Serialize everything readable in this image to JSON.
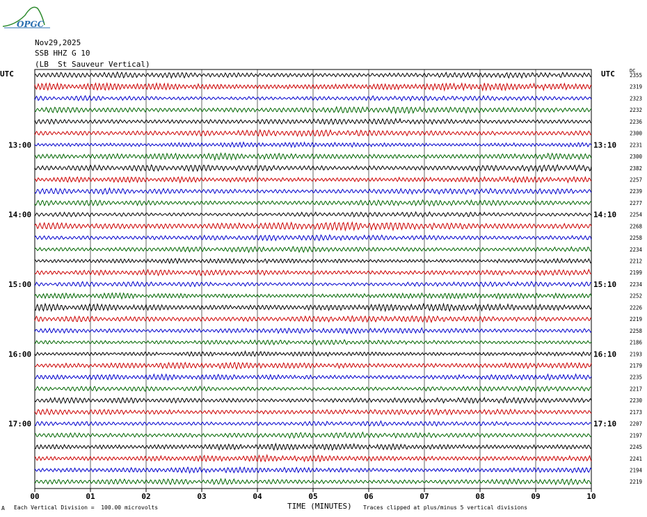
{
  "logo": {
    "text": "OPGC"
  },
  "header": {
    "date": "Nov29,2025",
    "station": "SSB HHZ G 10",
    "location": "(LB  St Sauveur Vertical)"
  },
  "labels": {
    "utc_left": "UTC",
    "utc_right": "UTC",
    "dc_header": "DC"
  },
  "footer": {
    "scale_note": "Each Vertical Division =  100.00 microvolts",
    "clip_note": "Traces clipped at plus/minus 5 vertical divisions",
    "corner_mark": "A"
  },
  "colors": {
    "trace_cycle": [
      "#000000",
      "#cc0000",
      "#0000cc",
      "#006600"
    ],
    "grid": "#000000",
    "background": "#ffffff"
  },
  "chart_data": {
    "type": "line",
    "title": "",
    "xlabel": "TIME (MINUTES)",
    "ylabel": "",
    "xlim": [
      0,
      10
    ],
    "x_ticks": [
      "00",
      "01",
      "02",
      "03",
      "04",
      "05",
      "06",
      "07",
      "08",
      "09",
      "10"
    ],
    "grid": true,
    "traces_per_hour": 6,
    "left_hour_labels": [
      {
        "label": "13:00",
        "trace": 6
      },
      {
        "label": "14:00",
        "trace": 12
      },
      {
        "label": "15:00",
        "trace": 18
      },
      {
        "label": "16:00",
        "trace": 24
      },
      {
        "label": "17:00",
        "trace": 30
      }
    ],
    "right_time_labels": [
      {
        "label": "13:10",
        "trace": 6
      },
      {
        "label": "14:10",
        "trace": 12
      },
      {
        "label": "15:10",
        "trace": 18
      },
      {
        "label": "16:10",
        "trace": 24
      },
      {
        "label": "17:10",
        "trace": 30
      }
    ],
    "trace_dc_values": [
      "2355",
      "2319",
      "2323",
      "2232",
      "2236",
      "2300",
      "2231",
      "2300",
      "2382",
      "2257",
      "2239",
      "2277",
      "2254",
      "2268",
      "2258",
      "2234",
      "2212",
      "2199",
      "2234",
      "2252",
      "2226",
      "2219",
      "2258",
      "2186",
      "2193",
      "2179",
      "2235",
      "2217",
      "2230",
      "2173",
      "2207",
      "2197",
      "2245",
      "2241",
      "2194",
      "2219"
    ],
    "trace_amplitude_relative": [
      0.7,
      0.9,
      0.6,
      0.8,
      0.7,
      0.8,
      0.6,
      0.8,
      0.8,
      0.7,
      0.7,
      0.7,
      0.6,
      1.0,
      0.7,
      0.7,
      0.6,
      0.7,
      0.6,
      0.7,
      0.9,
      0.8,
      0.7,
      0.6,
      0.6,
      0.8,
      0.7,
      0.6,
      0.7,
      0.7,
      0.6,
      0.7,
      0.8,
      0.8,
      0.7,
      0.7
    ]
  }
}
